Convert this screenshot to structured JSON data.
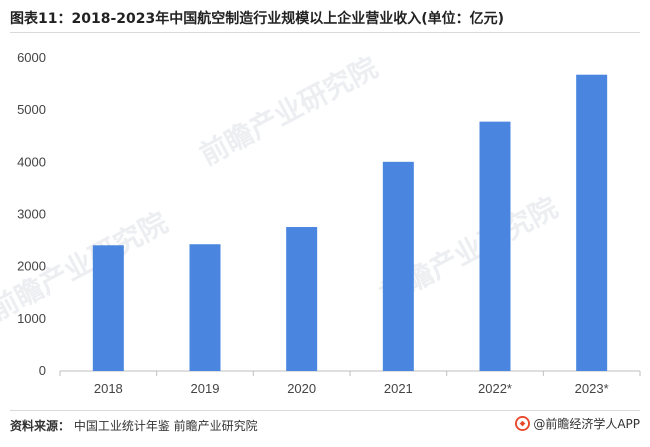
{
  "chart_data": {
    "type": "bar",
    "title": "图表11：2018-2023年中国航空制造行业规模以上企业营业收入(单位：亿元)",
    "categories": [
      "2018",
      "2019",
      "2020",
      "2021",
      "2022*",
      "2023*"
    ],
    "series": [
      {
        "name": "营业收入",
        "values": [
          2410,
          2430,
          2760,
          4010,
          4780,
          5680
        ]
      }
    ],
    "ylim": [
      0,
      6000
    ],
    "yticks": [
      0,
      1000,
      2000,
      3000,
      4000,
      5000,
      6000
    ],
    "xlabel": "",
    "ylabel": "",
    "grid": false,
    "bar_color": "#4a86e0"
  },
  "footer": {
    "source_label": "资料来源：",
    "source_text": "中国工业统计年鉴 前瞻产业研究院",
    "brand": "@前瞻经济学人APP"
  },
  "watermark": {
    "text": "前瞻产业研究院"
  },
  "colors": {
    "axis": "#bfbfbf",
    "bar": "#4a86e0",
    "brand_red": "#e8472b"
  }
}
